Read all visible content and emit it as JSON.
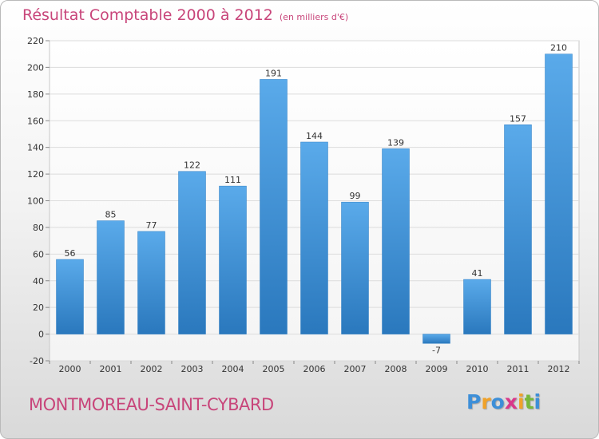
{
  "title": "Résultat Comptable 2000 à 2012",
  "unit": "(en milliers d'€)",
  "commune": "MONTMOREAU-SAINT-CYBARD",
  "logo": {
    "letters": [
      "P",
      "r",
      "o",
      "x",
      "i",
      "t",
      "i"
    ],
    "colors": [
      "#3d8fd8",
      "#f0a22a",
      "#3d8fd8",
      "#d9398a",
      "#f0a22a",
      "#77b83a",
      "#3d8fd8"
    ]
  },
  "colors": {
    "bar": "#4b9ee0",
    "bar_dark": "#2f7fc4",
    "title": "#c8457a",
    "grid": "#d8d8d8"
  },
  "chart_data": {
    "type": "bar",
    "title": "Résultat Comptable 2000 à 2012",
    "xlabel": "",
    "ylabel": "",
    "ylim": [
      -20,
      220
    ],
    "yticks": [
      -20,
      0,
      20,
      40,
      60,
      80,
      100,
      120,
      140,
      160,
      180,
      200,
      220
    ],
    "grid": true,
    "categories": [
      "2000",
      "2001",
      "2002",
      "2003",
      "2004",
      "2005",
      "2006",
      "2007",
      "2008",
      "2009",
      "2010",
      "2011",
      "2012"
    ],
    "values": [
      56,
      85,
      77,
      122,
      111,
      191,
      144,
      99,
      139,
      -7,
      41,
      157,
      210
    ]
  }
}
